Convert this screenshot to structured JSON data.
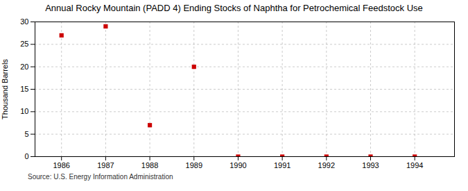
{
  "chart_data": {
    "type": "scatter",
    "title": "Annual Rocky Mountain (PADD 4) Ending Stocks of Naphtha for Petrochemical Feedstock Use",
    "ylabel": "Thousand Barrels",
    "source": "Source: U.S. Energy Information Administration",
    "x": [
      1986,
      1987,
      1988,
      1989,
      1990,
      1991,
      1992,
      1993,
      1994
    ],
    "values": [
      27,
      29,
      7,
      20,
      0,
      0,
      0,
      0,
      0
    ],
    "color": "#cc0000",
    "marker": "square",
    "xlim": [
      1985.4,
      1994.9
    ],
    "xticks": [
      1986,
      1987,
      1988,
      1989,
      1990,
      1991,
      1992,
      1993,
      1994
    ],
    "ylim": [
      0,
      30
    ],
    "yticks": [
      0,
      5,
      10,
      15,
      20,
      25,
      30
    ],
    "grid": true
  }
}
